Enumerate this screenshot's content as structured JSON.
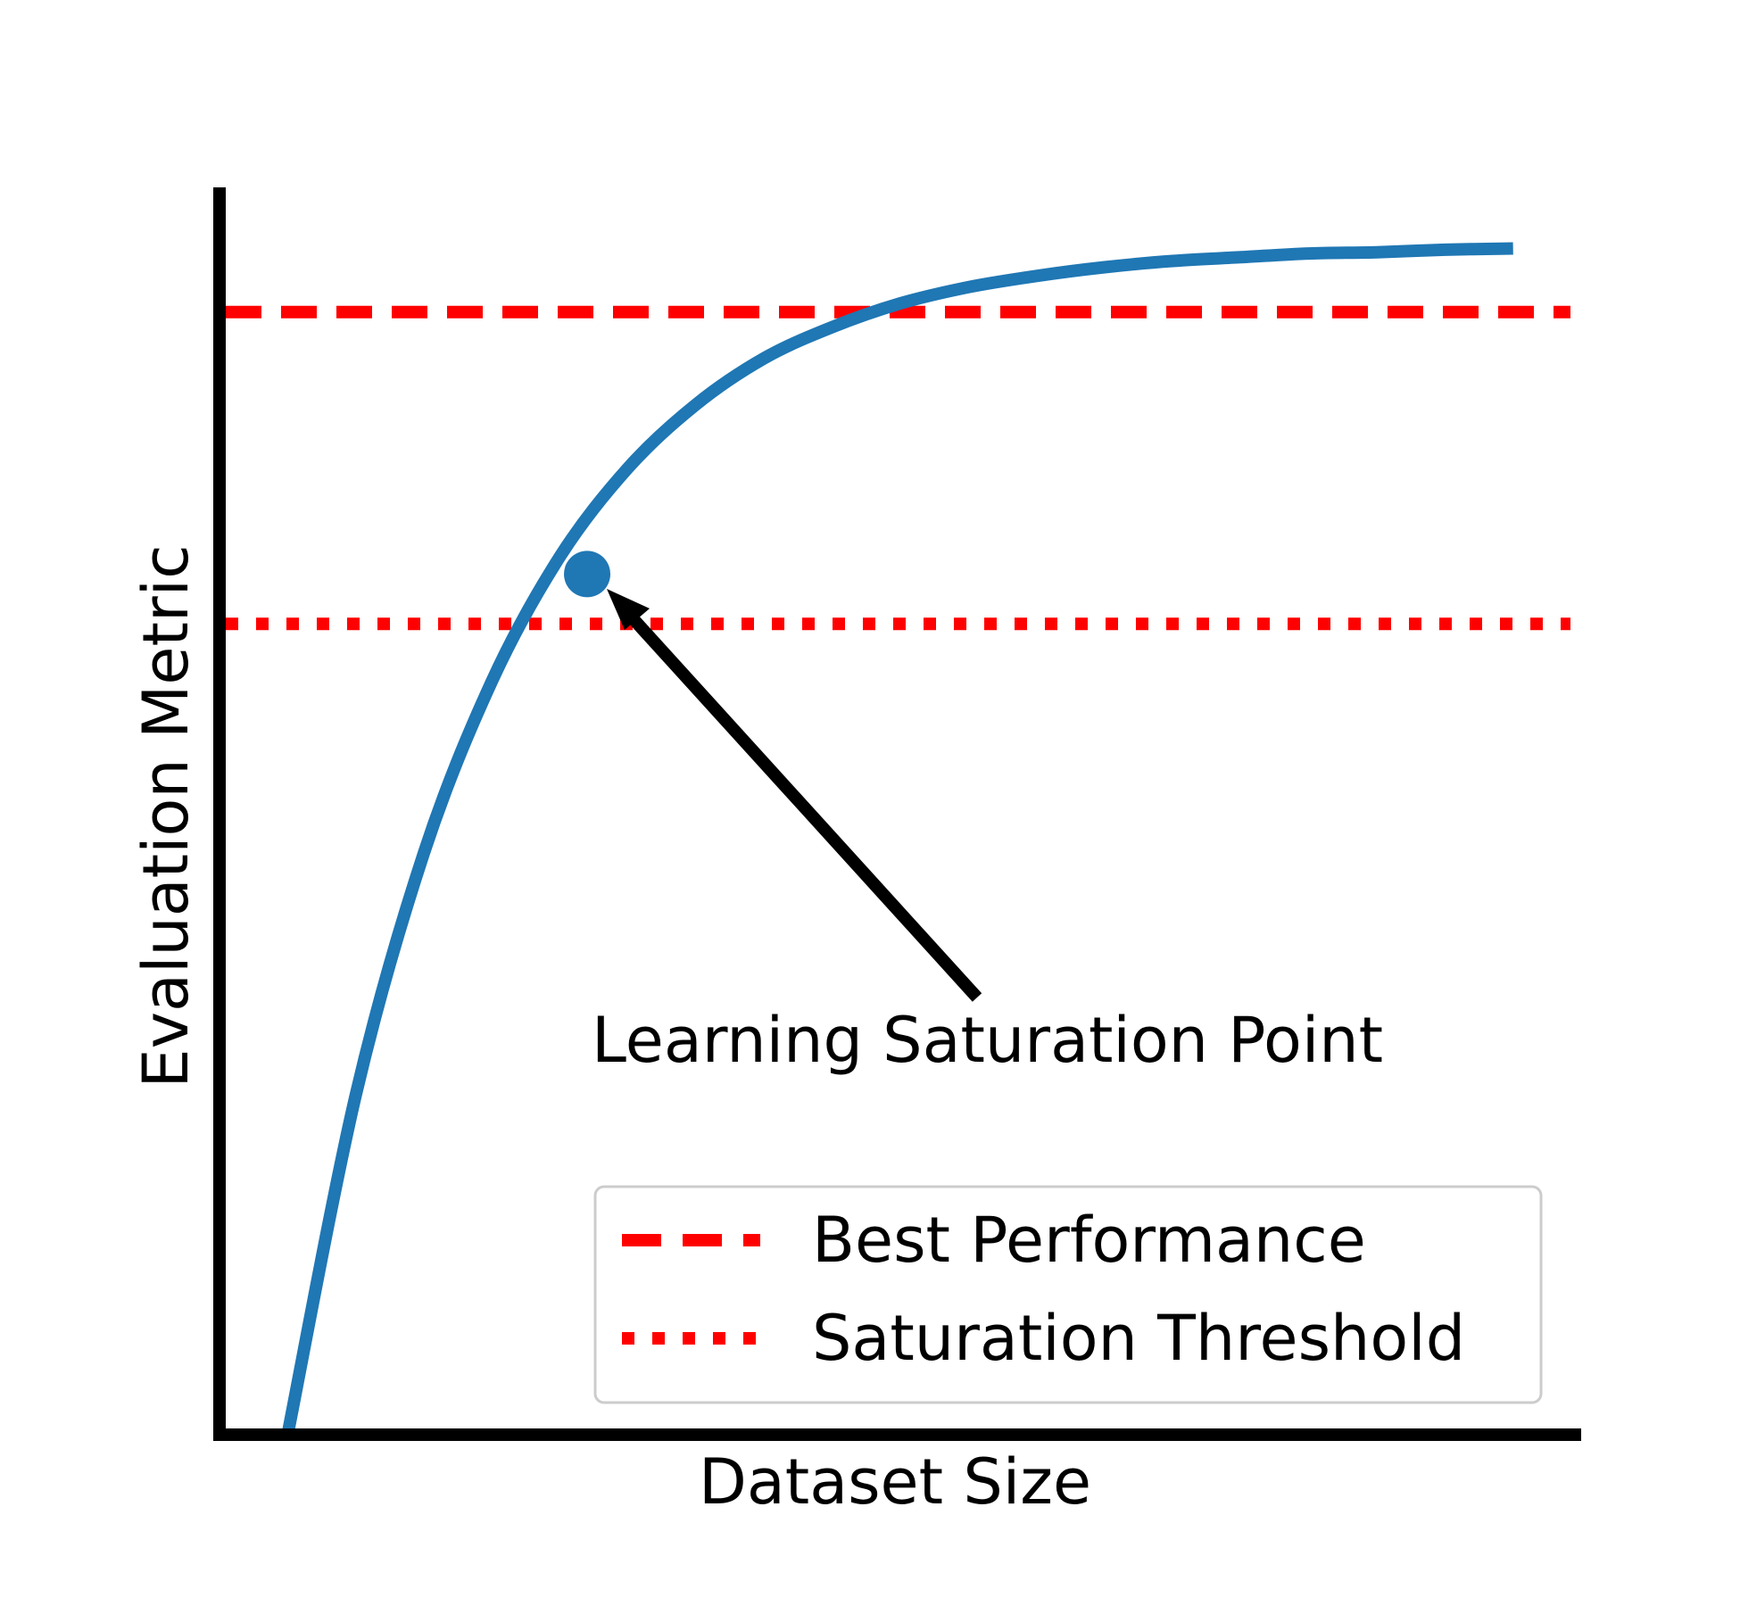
{
  "chart_data": {
    "type": "line",
    "title": "",
    "xlabel": "Dataset Size",
    "ylabel": "Evaluation Metric",
    "xlim": [
      0,
      1
    ],
    "ylim": [
      0,
      1
    ],
    "grid": false,
    "curve": {
      "color": "#1f77b4",
      "x": [
        0.05,
        0.1,
        0.15,
        0.2,
        0.25,
        0.3,
        0.35,
        0.4,
        0.45,
        0.5,
        0.55,
        0.6,
        0.65,
        0.7,
        0.75,
        0.8,
        0.85,
        0.9,
        0.95
      ],
      "y": [
        0.0,
        0.272,
        0.466,
        0.604,
        0.704,
        0.775,
        0.826,
        0.863,
        0.888,
        0.907,
        0.92,
        0.929,
        0.936,
        0.941,
        0.944,
        0.947,
        0.948,
        0.95,
        0.951
      ]
    },
    "reference_lines": [
      {
        "name": "Best Performance",
        "y": 0.9,
        "style": "dashed",
        "color": "#ff0000"
      },
      {
        "name": "Saturation Threshold",
        "y": 0.65,
        "style": "dotted",
        "color": "#ff0000"
      }
    ],
    "highlight_point": {
      "x": 0.27,
      "y": 0.69,
      "color": "#1f77b4"
    },
    "annotation": {
      "text": "Learning Saturation Point"
    },
    "legend": {
      "position": "lower-right",
      "entries": [
        "Best Performance",
        "Saturation Threshold"
      ]
    }
  }
}
